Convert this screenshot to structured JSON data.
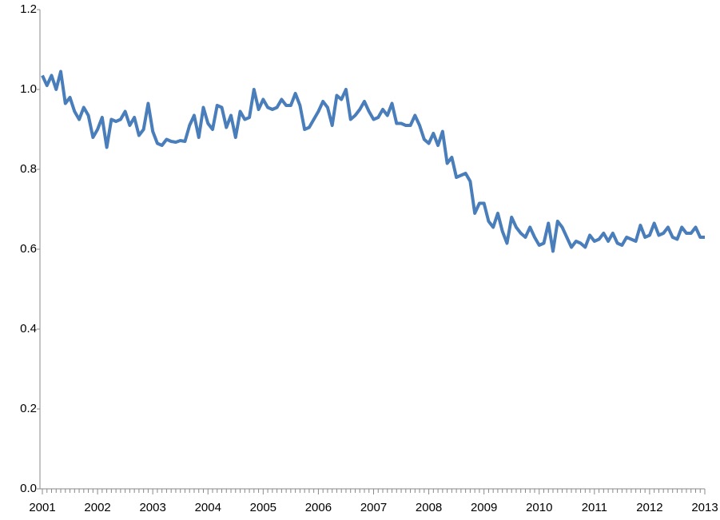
{
  "chart_data": {
    "type": "line",
    "categories": [
      "2001",
      null,
      null,
      null,
      null,
      null,
      null,
      null,
      null,
      null,
      null,
      null,
      "2002",
      null,
      null,
      null,
      null,
      null,
      null,
      null,
      null,
      null,
      null,
      null,
      "2003",
      null,
      null,
      null,
      null,
      null,
      null,
      null,
      null,
      null,
      null,
      null,
      "2004",
      null,
      null,
      null,
      null,
      null,
      null,
      null,
      null,
      null,
      null,
      null,
      "2005",
      null,
      null,
      null,
      null,
      null,
      null,
      null,
      null,
      null,
      null,
      null,
      "2006",
      null,
      null,
      null,
      null,
      null,
      null,
      null,
      null,
      null,
      null,
      null,
      "2007",
      null,
      null,
      null,
      null,
      null,
      null,
      null,
      null,
      null,
      null,
      null,
      "2008",
      null,
      null,
      null,
      null,
      null,
      null,
      null,
      null,
      null,
      null,
      null,
      "2009",
      null,
      null,
      null,
      null,
      null,
      null,
      null,
      null,
      null,
      null,
      null,
      "2010",
      null,
      null,
      null,
      null,
      null,
      null,
      null,
      null,
      null,
      null,
      null,
      "2011",
      null,
      null,
      null,
      null,
      null,
      null,
      null,
      null,
      null,
      null,
      null,
      "2012",
      null,
      null,
      null,
      null,
      null,
      null,
      null,
      null,
      null,
      null,
      null,
      "2013"
    ],
    "values": [
      1.035,
      1.01,
      1.035,
      1.0,
      1.045,
      0.965,
      0.98,
      0.945,
      0.925,
      0.955,
      0.935,
      0.88,
      0.9,
      0.93,
      0.855,
      0.925,
      0.92,
      0.925,
      0.945,
      0.91,
      0.93,
      0.885,
      0.9,
      0.965,
      0.895,
      0.865,
      0.86,
      0.875,
      0.87,
      0.868,
      0.872,
      0.87,
      0.91,
      0.935,
      0.88,
      0.955,
      0.915,
      0.9,
      0.96,
      0.955,
      0.905,
      0.935,
      0.88,
      0.945,
      0.925,
      0.93,
      1.0,
      0.95,
      0.975,
      0.955,
      0.95,
      0.955,
      0.975,
      0.96,
      0.96,
      0.99,
      0.96,
      0.9,
      0.905,
      0.925,
      0.945,
      0.97,
      0.955,
      0.91,
      0.985,
      0.975,
      1.0,
      0.925,
      0.935,
      0.95,
      0.97,
      0.945,
      0.925,
      0.93,
      0.95,
      0.935,
      0.965,
      0.915,
      0.915,
      0.91,
      0.91,
      0.935,
      0.91,
      0.875,
      0.865,
      0.89,
      0.86,
      0.895,
      0.815,
      0.83,
      0.78,
      0.785,
      0.79,
      0.77,
      0.69,
      0.715,
      0.715,
      0.67,
      0.655,
      0.69,
      0.645,
      0.615,
      0.68,
      0.655,
      0.64,
      0.63,
      0.655,
      0.63,
      0.61,
      0.615,
      0.665,
      0.595,
      0.67,
      0.655,
      0.63,
      0.605,
      0.62,
      0.615,
      0.605,
      0.635,
      0.62,
      0.625,
      0.64,
      0.62,
      0.64,
      0.615,
      0.61,
      0.63,
      0.625,
      0.62,
      0.66,
      0.63,
      0.635,
      0.665,
      0.635,
      0.64,
      0.655,
      0.63,
      0.625,
      0.655,
      0.64,
      0.64,
      0.655,
      0.63,
      0.63
    ],
    "color": "#4a7ebb",
    "ylim": [
      0,
      1.2
    ],
    "yticks": [
      {
        "value": 0,
        "label": "0.0"
      },
      0.2,
      0.4,
      0.6,
      0.8,
      {
        "value": 1,
        "label": "1.0"
      },
      1.2
    ]
  }
}
